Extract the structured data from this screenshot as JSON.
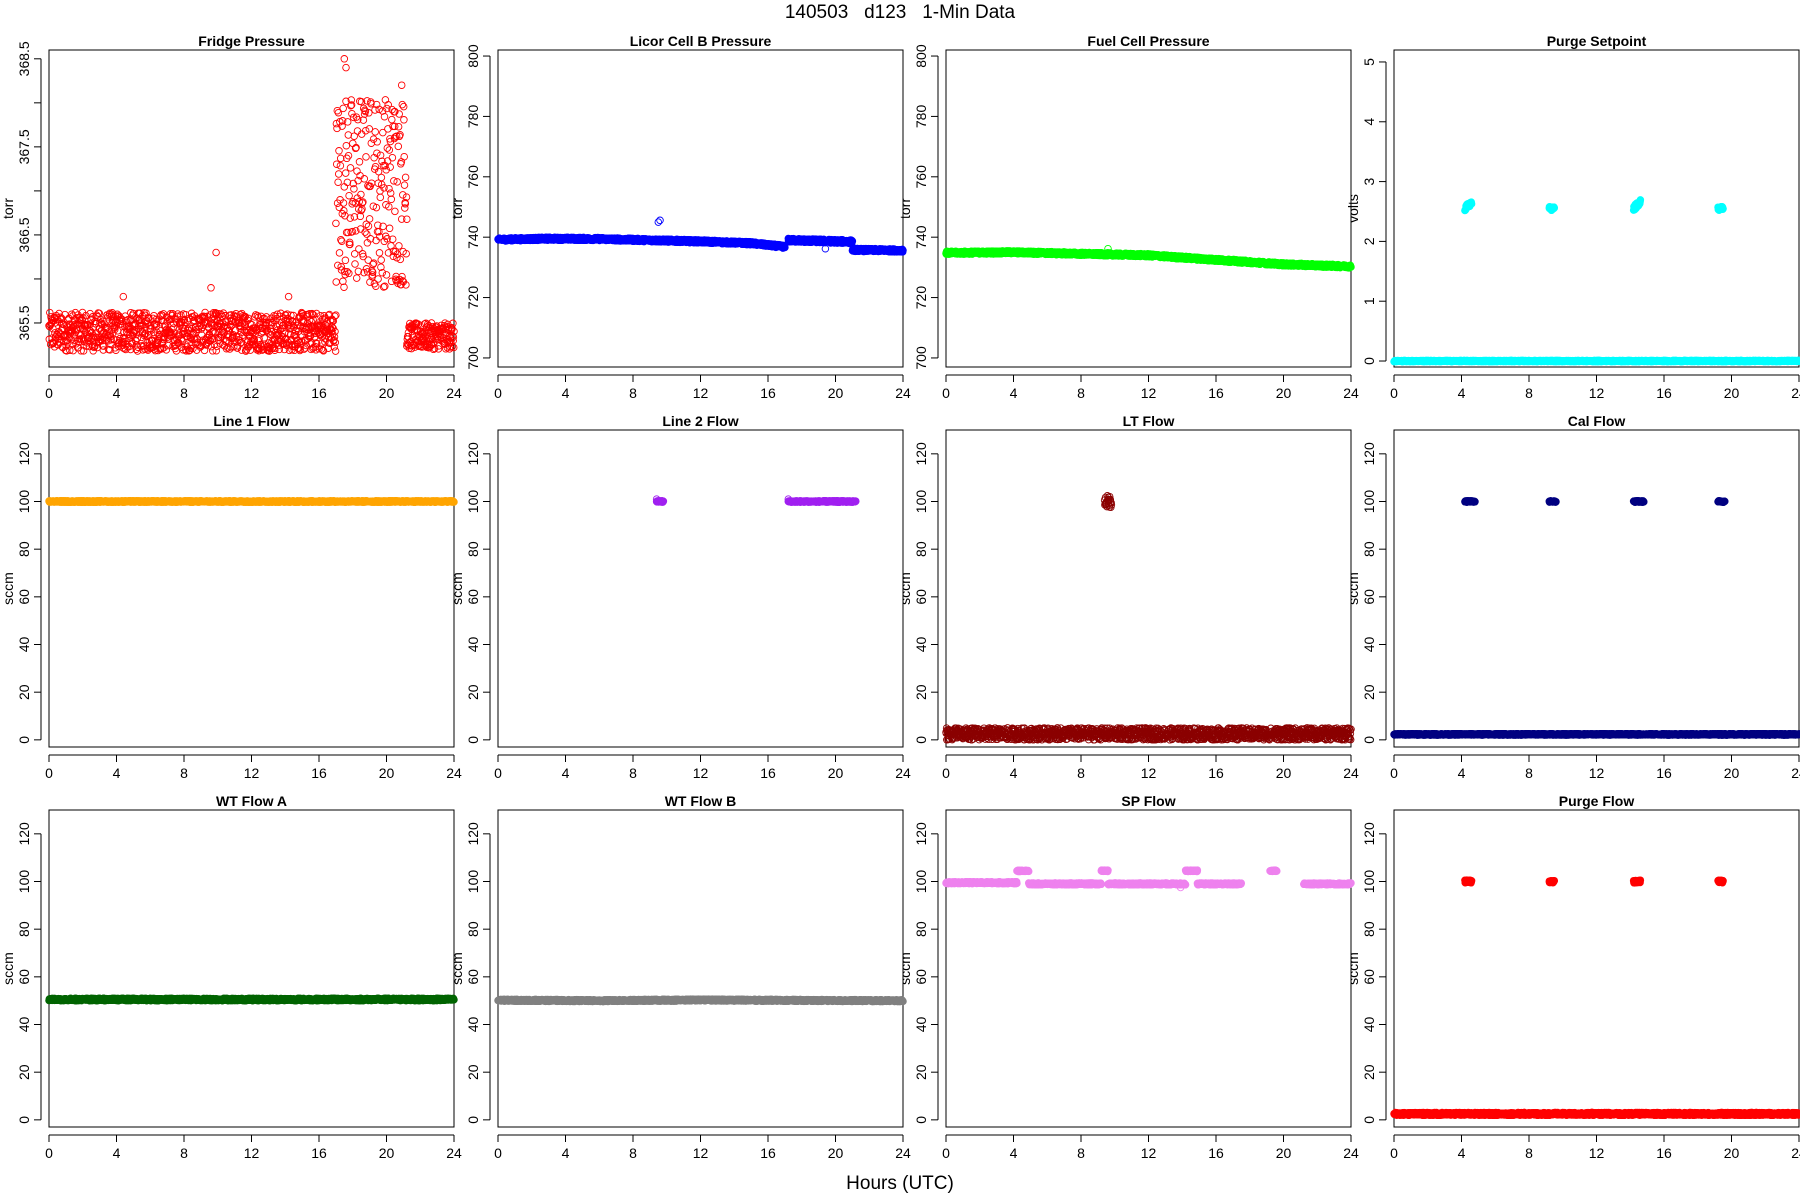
{
  "page": {
    "title": "140503   d123   1-Min Data",
    "xlabel": "Hours (UTC)"
  },
  "chart_data": [
    {
      "type": "scatter",
      "title": "Fridge Pressure",
      "ylabel": "torr",
      "xlim": [
        0,
        24
      ],
      "ylim": [
        365.0,
        368.6
      ],
      "xticks": [
        0,
        4,
        8,
        12,
        16,
        20,
        24
      ],
      "yticks": [
        365.5,
        366,
        366.5,
        367,
        367.5,
        368,
        368.5
      ],
      "ytick_labels": [
        "365.5",
        "",
        "366.5",
        "",
        "367.5",
        "",
        "368.5"
      ],
      "color": "#ff0000",
      "marker": "open",
      "series": [
        {
          "x": [
            0,
            17
          ],
          "y": [
            365.4,
            365.4
          ],
          "spread": 0.22
        },
        {
          "x": [
            17,
            21.2
          ],
          "y": [
            367.0,
            367.0
          ],
          "spread": 1.1
        },
        {
          "x": [
            21.2,
            24
          ],
          "y": [
            365.35,
            365.35
          ],
          "spread": 0.15
        }
      ],
      "outliers": {
        "x": [
          4.4,
          9.6,
          9.9,
          14.2,
          17.5,
          17.6,
          20.5,
          20.9
        ],
        "y": [
          365.8,
          365.9,
          366.3,
          365.8,
          368.5,
          368.4,
          367.9,
          368.2
        ]
      }
    },
    {
      "type": "scatter",
      "title": "Licor Cell B Pressure",
      "ylabel": "torr",
      "xlim": [
        0,
        24
      ],
      "ylim": [
        697,
        802
      ],
      "xticks": [
        0,
        4,
        8,
        12,
        16,
        20,
        24
      ],
      "yticks": [
        700,
        720,
        740,
        760,
        780,
        800
      ],
      "color": "#0000ff",
      "marker": "filled",
      "series": [
        {
          "x": [
            0,
            3,
            6,
            9,
            12,
            15,
            17
          ],
          "y": [
            739.2,
            739.5,
            739.4,
            739.0,
            738.6,
            738.0,
            736.8
          ],
          "spread": 0.5
        },
        {
          "x": [
            17.2,
            21.0
          ],
          "y": [
            739.0,
            738.5
          ],
          "spread": 0.6
        },
        {
          "x": [
            21.0,
            24.0
          ],
          "y": [
            735.8,
            735.6
          ],
          "spread": 0.5
        }
      ],
      "outliers": {
        "x": [
          9.5,
          9.6,
          19.4
        ],
        "y": [
          745.0,
          745.6,
          736.2
        ]
      }
    },
    {
      "type": "scatter",
      "title": "Fuel Cell Pressure",
      "ylabel": "torr",
      "xlim": [
        0,
        24
      ],
      "ylim": [
        697,
        802
      ],
      "xticks": [
        0,
        4,
        8,
        12,
        16,
        20,
        24
      ],
      "yticks": [
        700,
        720,
        740,
        760,
        780,
        800
      ],
      "color": "#00ff00",
      "marker": "filled",
      "series": [
        {
          "x": [
            0,
            4,
            8,
            12,
            16,
            20,
            24
          ],
          "y": [
            734.8,
            735.0,
            734.5,
            734.0,
            732.5,
            731.0,
            730.3
          ],
          "spread": 0.5
        }
      ],
      "outliers": {
        "x": [
          9.6
        ],
        "y": [
          736.2
        ]
      }
    },
    {
      "type": "scatter",
      "title": "Purge Setpoint",
      "ylabel": "volts",
      "xlim": [
        0,
        24
      ],
      "ylim": [
        -0.1,
        5.2
      ],
      "xticks": [
        0,
        4,
        8,
        12,
        16,
        20,
        24
      ],
      "yticks": [
        0,
        1,
        2,
        3,
        4,
        5
      ],
      "color": "#00ffff",
      "marker": "filled",
      "series": [
        {
          "x": [
            0,
            24
          ],
          "y": [
            0.0,
            0.0
          ],
          "spread": 0.01
        },
        {
          "x": [
            4.2,
            4.6
          ],
          "y": [
            2.55,
            2.65
          ],
          "spread": 0.04
        },
        {
          "x": [
            9.2,
            9.5
          ],
          "y": [
            2.55,
            2.55
          ],
          "spread": 0.03
        },
        {
          "x": [
            14.2,
            14.6
          ],
          "y": [
            2.55,
            2.65
          ],
          "spread": 0.05
        },
        {
          "x": [
            19.2,
            19.5
          ],
          "y": [
            2.55,
            2.55
          ],
          "spread": 0.03
        }
      ],
      "outliers": {
        "x": [],
        "y": []
      }
    },
    {
      "type": "scatter",
      "title": "Line 1 Flow",
      "ylabel": "sccm",
      "xlim": [
        0,
        24
      ],
      "ylim": [
        -3,
        130
      ],
      "xticks": [
        0,
        4,
        8,
        12,
        16,
        20,
        24
      ],
      "yticks": [
        0,
        20,
        40,
        60,
        80,
        100,
        120
      ],
      "color": "#ffa500",
      "marker": "filled",
      "series": [
        {
          "x": [
            0,
            24
          ],
          "y": [
            100,
            100
          ],
          "spread": 0.3
        }
      ],
      "outliers": {
        "x": [],
        "y": []
      }
    },
    {
      "type": "scatter",
      "title": "Line 2 Flow",
      "ylabel": "sccm",
      "xlim": [
        0,
        24
      ],
      "ylim": [
        -3,
        130
      ],
      "xticks": [
        0,
        4,
        8,
        12,
        16,
        20,
        24
      ],
      "yticks": [
        0,
        20,
        40,
        60,
        80,
        100,
        120
      ],
      "color": "#a020f0",
      "marker": "filled",
      "series": [
        {
          "x": [
            9.4,
            9.8
          ],
          "y": [
            100,
            100
          ],
          "spread": 0.3
        },
        {
          "x": [
            17.2,
            21.2
          ],
          "y": [
            100,
            100
          ],
          "spread": 0.3
        }
      ],
      "outliers": {
        "x": [
          9.4,
          17.2
        ],
        "y": [
          101,
          101
        ]
      }
    },
    {
      "type": "scatter",
      "title": "LT Flow",
      "ylabel": "sccm",
      "xlim": [
        0,
        24
      ],
      "ylim": [
        -3,
        130
      ],
      "xticks": [
        0,
        4,
        8,
        12,
        16,
        20,
        24
      ],
      "yticks": [
        0,
        20,
        40,
        60,
        80,
        100,
        120
      ],
      "color": "#8b0000",
      "marker": "open",
      "series": [
        {
          "x": [
            0,
            24
          ],
          "y": [
            2.5,
            2.5
          ],
          "spread": 2.5
        },
        {
          "x": [
            9.4,
            9.8
          ],
          "y": [
            100,
            100
          ],
          "spread": 2.5
        }
      ],
      "outliers": {
        "x": [],
        "y": []
      }
    },
    {
      "type": "scatter",
      "title": "Cal Flow",
      "ylabel": "sccm",
      "xlim": [
        0,
        24
      ],
      "ylim": [
        -3,
        130
      ],
      "xticks": [
        0,
        4,
        8,
        12,
        16,
        20,
        24
      ],
      "yticks": [
        0,
        20,
        40,
        60,
        80,
        100,
        120
      ],
      "color": "#000080",
      "marker": "filled",
      "series": [
        {
          "x": [
            0,
            24
          ],
          "y": [
            2.3,
            2.3
          ],
          "spread": 0.3
        },
        {
          "x": [
            4.2,
            4.8
          ],
          "y": [
            100,
            100
          ],
          "spread": 0.3
        },
        {
          "x": [
            9.2,
            9.6
          ],
          "y": [
            100,
            100
          ],
          "spread": 0.3
        },
        {
          "x": [
            14.2,
            14.8
          ],
          "y": [
            100,
            100
          ],
          "spread": 0.3
        },
        {
          "x": [
            19.2,
            19.6
          ],
          "y": [
            100,
            100
          ],
          "spread": 0.3
        }
      ],
      "outliers": {
        "x": [],
        "y": []
      }
    },
    {
      "type": "scatter",
      "title": "WT Flow A",
      "ylabel": "sccm",
      "xlim": [
        0,
        24
      ],
      "ylim": [
        -3,
        130
      ],
      "xticks": [
        0,
        4,
        8,
        12,
        16,
        20,
        24
      ],
      "yticks": [
        0,
        20,
        40,
        60,
        80,
        100,
        120
      ],
      "color": "#006400",
      "marker": "filled",
      "series": [
        {
          "x": [
            0,
            24
          ],
          "y": [
            50.5,
            50.5
          ],
          "spread": 0.5
        }
      ],
      "outliers": {
        "x": [],
        "y": []
      }
    },
    {
      "type": "scatter",
      "title": "WT Flow B",
      "ylabel": "sccm",
      "xlim": [
        0,
        24
      ],
      "ylim": [
        -3,
        130
      ],
      "xticks": [
        0,
        4,
        8,
        12,
        16,
        20,
        24
      ],
      "yticks": [
        0,
        20,
        40,
        60,
        80,
        100,
        120
      ],
      "color": "#808080",
      "marker": "filled",
      "series": [
        {
          "x": [
            0,
            6,
            12,
            18,
            24
          ],
          "y": [
            50.2,
            50.0,
            50.3,
            50.1,
            50.0
          ],
          "spread": 0.4
        }
      ],
      "outliers": {
        "x": [],
        "y": []
      }
    },
    {
      "type": "scatter",
      "title": "SP Flow",
      "ylabel": "sccm",
      "xlim": [
        0,
        24
      ],
      "ylim": [
        -3,
        130
      ],
      "xticks": [
        0,
        4,
        8,
        12,
        16,
        20,
        24
      ],
      "yticks": [
        0,
        20,
        40,
        60,
        80,
        100,
        120
      ],
      "color": "#ee82ee",
      "marker": "filled",
      "series": [
        {
          "x": [
            0,
            4.2
          ],
          "y": [
            99.5,
            99.5
          ],
          "spread": 0.4
        },
        {
          "x": [
            4.2,
            4.9
          ],
          "y": [
            104.5,
            104.5
          ],
          "spread": 0.3
        },
        {
          "x": [
            4.9,
            9.2
          ],
          "y": [
            99.0,
            99.0
          ],
          "spread": 0.4
        },
        {
          "x": [
            9.2,
            9.6
          ],
          "y": [
            104.5,
            104.5
          ],
          "spread": 0.3
        },
        {
          "x": [
            9.6,
            14.2
          ],
          "y": [
            99.0,
            99.0
          ],
          "spread": 0.4
        },
        {
          "x": [
            14.2,
            14.9
          ],
          "y": [
            104.5,
            104.5
          ],
          "spread": 0.3
        },
        {
          "x": [
            14.9,
            17.5
          ],
          "y": [
            99.0,
            99.0
          ],
          "spread": 0.4
        },
        {
          "x": [
            19.2,
            19.6
          ],
          "y": [
            104.5,
            104.5
          ],
          "spread": 0.3
        },
        {
          "x": [
            21.2,
            24
          ],
          "y": [
            99.0,
            99.0
          ],
          "spread": 0.4
        }
      ],
      "outliers": {
        "x": [
          13.9
        ],
        "y": [
          97.5
        ]
      }
    },
    {
      "type": "scatter",
      "title": "Purge Flow",
      "ylabel": "sccm",
      "xlim": [
        0,
        24
      ],
      "ylim": [
        -3,
        130
      ],
      "xticks": [
        0,
        4,
        8,
        12,
        16,
        20,
        24
      ],
      "yticks": [
        0,
        20,
        40,
        60,
        80,
        100,
        120
      ],
      "color": "#ff0000",
      "marker": "filled",
      "series": [
        {
          "x": [
            0,
            24
          ],
          "y": [
            2.5,
            2.5
          ],
          "spread": 0.6
        },
        {
          "x": [
            4.2,
            4.6
          ],
          "y": [
            100,
            100
          ],
          "spread": 0.6
        },
        {
          "x": [
            9.2,
            9.5
          ],
          "y": [
            100,
            100
          ],
          "spread": 0.6
        },
        {
          "x": [
            14.2,
            14.6
          ],
          "y": [
            100,
            100
          ],
          "spread": 0.6
        },
        {
          "x": [
            19.2,
            19.5
          ],
          "y": [
            100,
            100
          ],
          "spread": 0.6
        }
      ],
      "outliers": {
        "x": [],
        "y": []
      }
    }
  ]
}
